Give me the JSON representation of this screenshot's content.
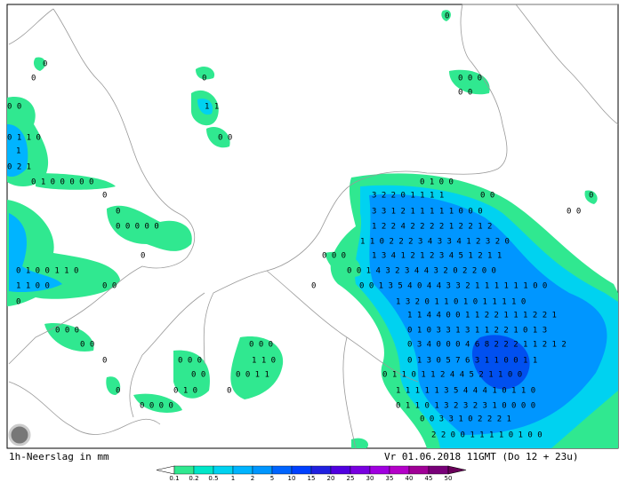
{
  "map": {
    "caption": "1h-Neerslag in mm",
    "timestamp": "Vr 01.06.2018 11GMT (Do 12 + 23u)",
    "legend": {
      "ticks": [
        0.1,
        0.2,
        0.5,
        1,
        2,
        5,
        10,
        15,
        20,
        25,
        30,
        35,
        40,
        45,
        50
      ],
      "colors": [
        "#30e890",
        "#00e6c8",
        "#00d2f0",
        "#00b4ff",
        "#0096ff",
        "#0064ff",
        "#0040ff",
        "#2020e0",
        "#5000e0",
        "#7800e0",
        "#a000e0",
        "#b400c8",
        "#a00096",
        "#780078"
      ]
    },
    "labels": [
      "0",
      "0",
      "0",
      "0",
      "0 0 0",
      "0 0",
      "0 0",
      "1 1",
      "0 1 1 0",
      "0 0",
      "1",
      "0 2 1",
      "0 1 0 0 0 0 0",
      "0 1 0 0",
      "0",
      "3 2 2 0 1 1 1 1",
      "0 0",
      "0",
      "0",
      "3 3 1 2 1 1 1 1 1 0 0 0",
      "0 0",
      "1 2 2 4 2 2 2 2 1 2 2 1 2",
      "0 0 0 0 0",
      "1 1 0 2 2 2 3 4 3 3 4 1 2 3 2 0",
      "0",
      "0 0 0",
      "1 3 4 1 2 1 2 3 4 5 1 2 1 1",
      "0 1 0 0 1 1 0",
      "0 0 1 4 3 2 3 4 4 3 2 0 2 2 0 0",
      "1 1 0 0",
      "0 0",
      "0 0 1 3 5 4 0 4 4 3 3 2 1 1 1 1 1 1 0 0",
      "0",
      "1 3 2 0 1 1 0 1 0 1 1 1 1 0",
      "0",
      "1 1 4 4 0 0 1 1 2 2 1 1 1 2 2 1",
      "0 1 0 3 3 1 3 1 1 2 2 1 0 1 3",
      "0 0 0",
      "0 3 4 0 0 0 4 6 8 2 2 2 1 1 2 1 2",
      "0 0",
      "0 0 0",
      "0 1 3 0 5 7 6 3 1 1 0 0 1 1",
      "0",
      "0 0 0",
      "1 1 0",
      "0 1 1 0 1 1 2 4 4 5 2 1 1 0 0",
      "0 0",
      "0 0 1 1",
      "1 1 1 1 1 3 5 4 4 4 1 0 1 1 0",
      "0",
      "0 1 0",
      "0",
      "0 1 1 0 1 3 2 3 2 3 1 0 0 0 0",
      "0 0 0 0",
      "0 0 3 3 1 0 2 2 2 1",
      "2 2 0 0 1 1 1 1 0 1 0 0"
    ]
  }
}
